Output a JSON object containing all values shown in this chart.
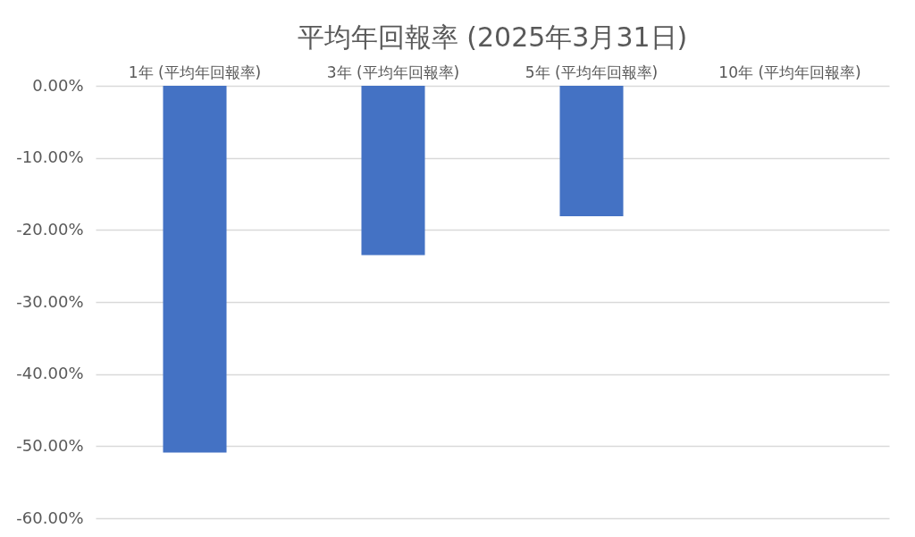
{
  "chart_data": {
    "type": "bar",
    "title": "平均年回報率 (2025年3月31日)",
    "categories": [
      "1年 (平均年回報率)",
      "3年 (平均年回報率)",
      "5年 (平均年回報率)",
      "10年 (平均年回報率)"
    ],
    "values": [
      -50.9,
      -23.5,
      -18.1,
      null
    ],
    "color": "#4472c4",
    "ylim": [
      -60,
      0
    ],
    "yticks": [
      {
        "value": -60,
        "label": "-60.00%"
      },
      {
        "value": -50,
        "label": "-50.00%"
      },
      {
        "value": -40,
        "label": "-40.00%"
      },
      {
        "value": -30,
        "label": "-30.00%"
      },
      {
        "value": -20,
        "label": "-20.00%"
      },
      {
        "value": -10,
        "label": "-10.00%"
      },
      {
        "value": 0,
        "label": "0.00%"
      }
    ],
    "grid": "y"
  }
}
